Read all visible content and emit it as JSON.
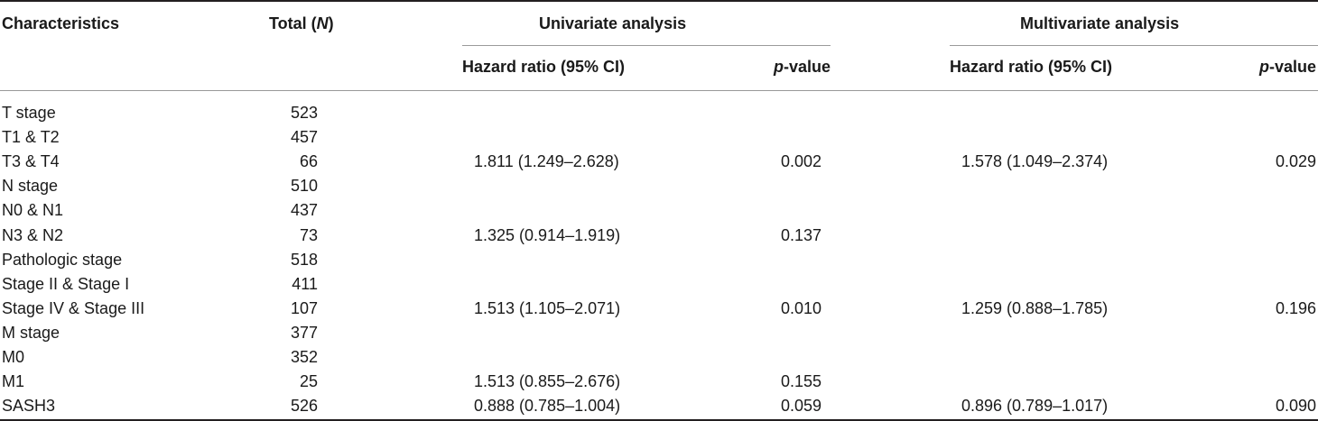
{
  "headers": {
    "characteristics": "Characteristics",
    "total_prefix": "Total (",
    "total_n": "N",
    "total_suffix": ")",
    "univariate": "Univariate analysis",
    "multivariate": "Multivariate analysis",
    "uni_hr": "Hazard ratio (95% CI)",
    "uni_p_italic": "p",
    "uni_p_rest": "-value",
    "multi_hr": "Hazard ratio (95% CI)",
    "multi_p_italic": "p",
    "multi_p_rest": "-value"
  },
  "rows": [
    {
      "characteristic": "T stage",
      "total": "523",
      "uni_hr": "",
      "uni_p": "",
      "multi_hr": "",
      "multi_p": ""
    },
    {
      "characteristic": "T1 & T2",
      "total": "457",
      "uni_hr": "",
      "uni_p": "",
      "multi_hr": "",
      "multi_p": ""
    },
    {
      "characteristic": "T3 & T4",
      "total": "66",
      "uni_hr": "1.811 (1.249–2.628)",
      "uni_p": "0.002",
      "multi_hr": "1.578 (1.049–2.374)",
      "multi_p": "0.029"
    },
    {
      "characteristic": "N stage",
      "total": "510",
      "uni_hr": "",
      "uni_p": "",
      "multi_hr": "",
      "multi_p": ""
    },
    {
      "characteristic": "N0 & N1",
      "total": "437",
      "uni_hr": "",
      "uni_p": "",
      "multi_hr": "",
      "multi_p": ""
    },
    {
      "characteristic": "N3 & N2",
      "total": "73",
      "uni_hr": "1.325 (0.914–1.919)",
      "uni_p": "0.137",
      "multi_hr": "",
      "multi_p": ""
    },
    {
      "characteristic": "Pathologic stage",
      "total": "518",
      "uni_hr": "",
      "uni_p": "",
      "multi_hr": "",
      "multi_p": ""
    },
    {
      "characteristic": "Stage II & Stage I",
      "total": "411",
      "uni_hr": "",
      "uni_p": "",
      "multi_hr": "",
      "multi_p": ""
    },
    {
      "characteristic": "Stage IV & Stage III",
      "total": "107",
      "uni_hr": "1.513 (1.105–2.071)",
      "uni_p": "0.010",
      "multi_hr": "1.259 (0.888–1.785)",
      "multi_p": "0.196"
    },
    {
      "characteristic": "M stage",
      "total": "377",
      "uni_hr": "",
      "uni_p": "",
      "multi_hr": "",
      "multi_p": ""
    },
    {
      "characteristic": "M0",
      "total": "352",
      "uni_hr": "",
      "uni_p": "",
      "multi_hr": "",
      "multi_p": ""
    },
    {
      "characteristic": "M1",
      "total": "25",
      "uni_hr": "1.513 (0.855–2.676)",
      "uni_p": "0.155",
      "multi_hr": "",
      "multi_p": ""
    },
    {
      "characteristic": "SASH3",
      "total": "526",
      "uni_hr": "0.888 (0.785–1.004)",
      "uni_p": "0.059",
      "multi_hr": "0.896 (0.789–1.017)",
      "multi_p": "0.090"
    }
  ]
}
